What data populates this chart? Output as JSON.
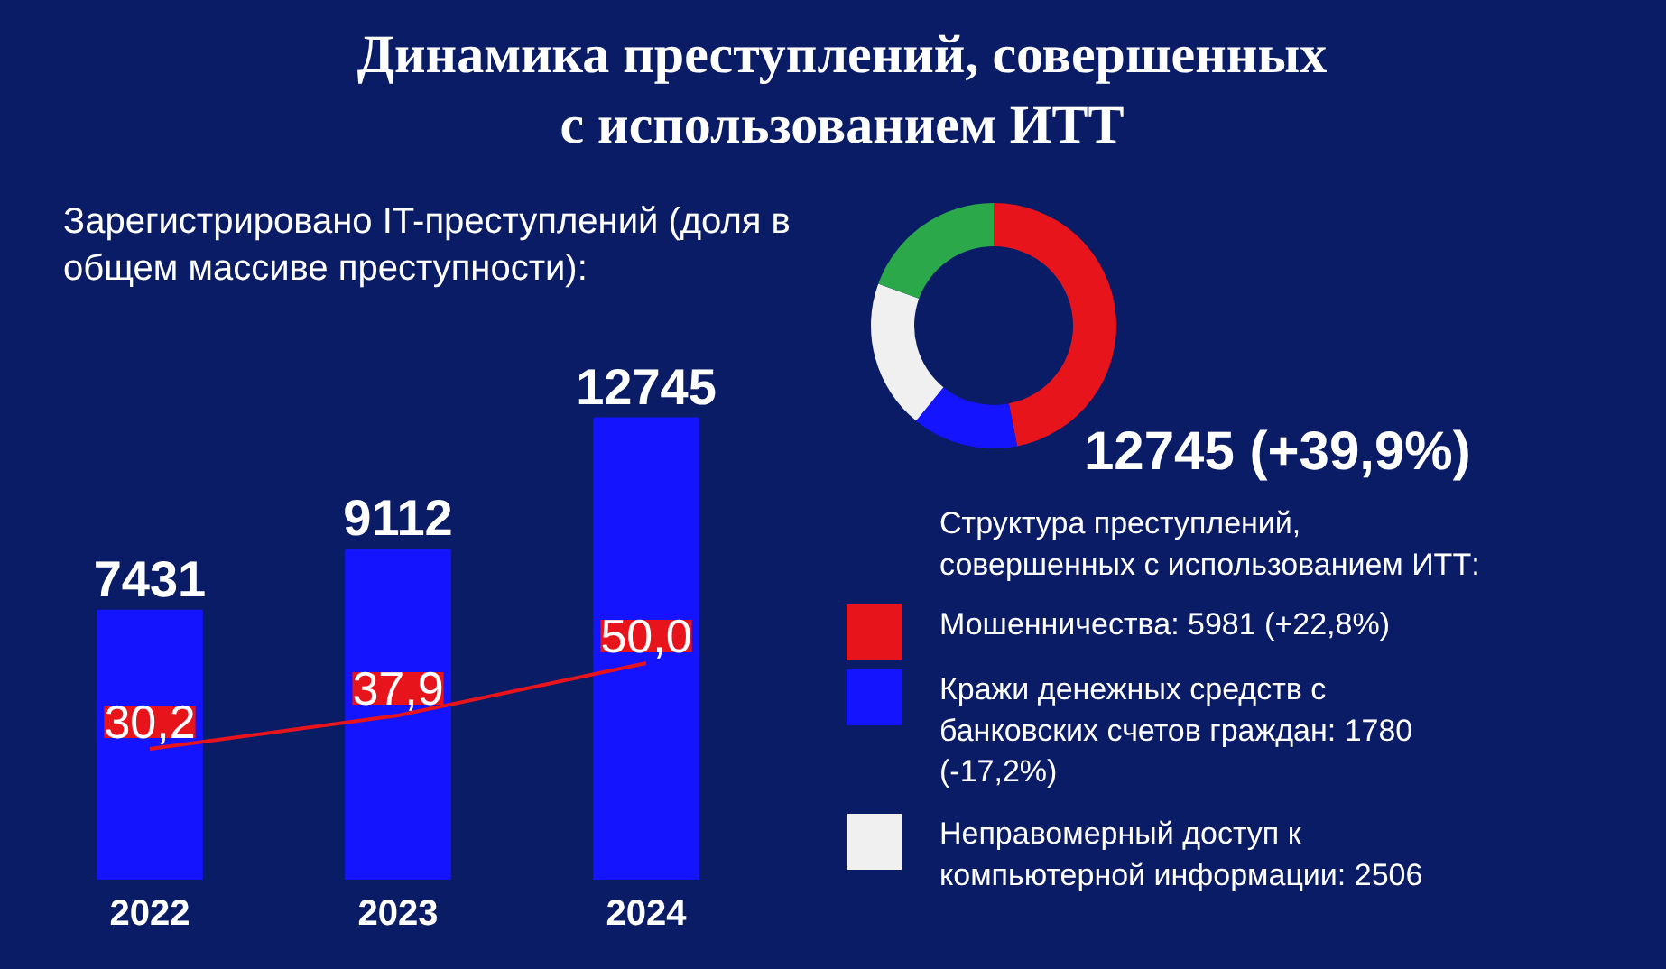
{
  "chart_data": [
    {
      "type": "bar",
      "title": "Динамика преступлений, совершенных с использованием ИТТ",
      "subtitle": "Зарегистрировано IT-преступлений (доля в общем массиве преступности):",
      "categories": [
        "2022",
        "2023",
        "2024"
      ],
      "series": [
        {
          "type": "bar",
          "color": "#1414ff",
          "values": [
            7431,
            9112,
            12745
          ]
        },
        {
          "type": "line",
          "axis": "y2",
          "color": "#e8141c",
          "values": [
            30.2,
            37.9,
            50.0
          ],
          "value_labels": [
            "30,2",
            "37,9",
            "50,0"
          ]
        }
      ],
      "data_labels": true,
      "grid": false
    },
    {
      "type": "donut",
      "title": "Структура преступлений, совершенных с использованием ИТТ:",
      "categories": [
        "Мошенничества: 5981 (+22,8%)",
        "Кражи денежных средств с банковских счетов граждан: 1780 (-17,2%)",
        "Неправомерный доступ к компьютерной информации: 2506",
        null
      ],
      "values": [
        5981,
        1780,
        2506,
        2478
      ],
      "colors": [
        "#e8141c",
        "#1414ff",
        "#f0f0f0",
        "#2aa84a"
      ],
      "annotations": [
        "12745 (+39,9%)"
      ],
      "legend": "bottom right"
    }
  ]
}
